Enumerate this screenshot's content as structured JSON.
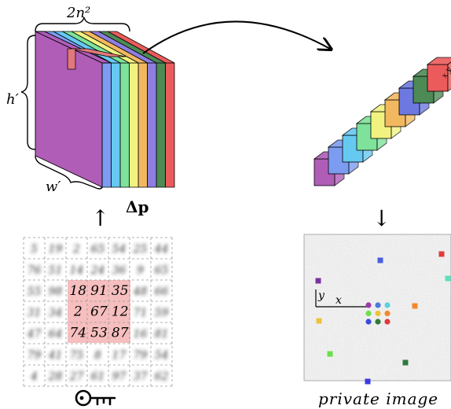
{
  "block": {
    "width_label": "2n²",
    "height_label": "h′",
    "depth_label": "w′",
    "delta_label": "Δp",
    "slice_colors": [
      "#b05db8",
      "#7b9cf0",
      "#66c9f2",
      "#7ee29a",
      "#f2f281",
      "#f2b860",
      "#8e7ee2",
      "#4d8a56",
      "#ec5b5b"
    ]
  },
  "column": {
    "cell_label": "x y",
    "colors": [
      "#b05db8",
      "#7b9cf0",
      "#66c9f2",
      "#7ee29a",
      "#f2f281",
      "#f2b860",
      "#6d79e0",
      "#4d8a56",
      "#ec5b5b"
    ]
  },
  "grid": {
    "highlight_values": [
      [
        "18",
        "91",
        "35"
      ],
      [
        "2",
        "67",
        "12"
      ],
      [
        "74",
        "53",
        "87"
      ]
    ],
    "blurred_values": [
      [
        "5",
        "19",
        "2",
        "65",
        "54",
        "25",
        "44"
      ],
      [
        "76",
        "51",
        "14",
        "24",
        "36",
        "9",
        "65"
      ],
      [
        "55",
        "98",
        "",
        "",
        "",
        "48",
        "66"
      ],
      [
        "31",
        "34",
        "",
        "",
        "",
        "71",
        "59"
      ],
      [
        "47",
        "64",
        "",
        "",
        "",
        "16",
        "81"
      ],
      [
        "79",
        "41",
        "75",
        "8",
        "17",
        "79",
        "54"
      ],
      [
        "4",
        "28",
        "27",
        "61",
        "97",
        "37",
        "62"
      ]
    ],
    "key_icon": "key-icon"
  },
  "private_image": {
    "caption": "private image",
    "x_axis_label": "x",
    "y_axis_label": "y",
    "markers": [
      {
        "color": "#4a5fe0"
      },
      {
        "color": "#e03a3a"
      },
      {
        "color": "#7e2f9c"
      },
      {
        "color": "#5fe0c0"
      },
      {
        "color": "#f0c23a"
      },
      {
        "color": "#f08a2a"
      },
      {
        "color": "#6ae04a"
      },
      {
        "color": "#2f7a3a"
      },
      {
        "color": "#3a3ae0"
      }
    ],
    "cluster_colors": [
      [
        "#9c3aa8",
        "#4a7ae0",
        "#5fd0e0"
      ],
      [
        "#6ae04a",
        "#f0c23a",
        "#f08a2a"
      ],
      [
        "#3a4ae0",
        "#2f7a3a",
        "#e03a3a"
      ]
    ]
  },
  "arrows": {
    "up_arrow": "↑",
    "down_arrow": "↓"
  }
}
